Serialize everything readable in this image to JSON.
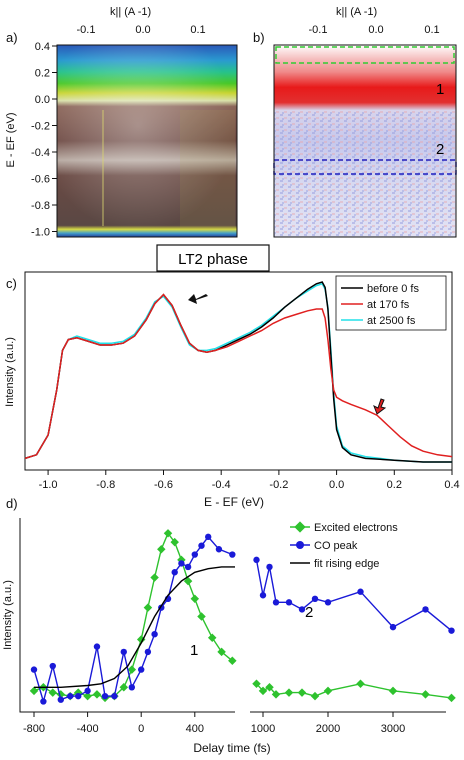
{
  "panels": {
    "a": "a)",
    "b": "b)",
    "c": "c)",
    "d": "d)"
  },
  "top_axis_label": "k|| (A -1)",
  "top_ticks": [
    "-0.1",
    "0.0",
    "0.1"
  ],
  "energy_axis": {
    "ylabel": "E - EF (eV)",
    "ticks": [
      "0.4",
      "0.2",
      "0.0",
      "-0.2",
      "-0.4",
      "-0.6",
      "-0.8",
      "-1.0"
    ]
  },
  "region_labels": [
    "1",
    "2"
  ],
  "phase_label": "LT2 phase",
  "colors": {
    "black": "#000000",
    "red": "#e02020",
    "cyan": "#22e0e8",
    "green": "#2ec22e",
    "blue": "#1a1ad8",
    "green_box": "#33cc33",
    "blue_box": "#2020c0"
  },
  "chart_data": [
    {
      "type": "line",
      "panel": "c",
      "ylabel": "Intensity (a.u.)",
      "xlabel": "E - EF (eV)",
      "xlim": [
        -1.08,
        0.4
      ],
      "xticks": [
        "-1.0",
        "-0.8",
        "-0.6",
        "-0.4",
        "-0.2",
        "0.0",
        "0.2",
        "0.4"
      ],
      "legend_position": "top-right",
      "series": [
        {
          "name": "before 0 fs",
          "x": [
            -1.08,
            -1.04,
            -1.0,
            -0.97,
            -0.95,
            -0.93,
            -0.9,
            -0.86,
            -0.82,
            -0.78,
            -0.74,
            -0.7,
            -0.66,
            -0.63,
            -0.6,
            -0.57,
            -0.54,
            -0.51,
            -0.48,
            -0.45,
            -0.42,
            -0.38,
            -0.34,
            -0.3,
            -0.26,
            -0.22,
            -0.18,
            -0.14,
            -0.1,
            -0.07,
            -0.05,
            -0.04,
            -0.03,
            -0.02,
            -0.01,
            0.0,
            0.02,
            0.05,
            0.1,
            0.2,
            0.3,
            0.4
          ],
          "y": [
            0.02,
            0.04,
            0.15,
            0.4,
            0.62,
            0.68,
            0.69,
            0.67,
            0.65,
            0.65,
            0.66,
            0.7,
            0.79,
            0.88,
            0.93,
            0.87,
            0.76,
            0.66,
            0.62,
            0.61,
            0.62,
            0.65,
            0.68,
            0.71,
            0.75,
            0.8,
            0.86,
            0.91,
            0.96,
            0.99,
            1.0,
            0.97,
            0.85,
            0.6,
            0.35,
            0.18,
            0.08,
            0.04,
            0.02,
            0.01,
            0.0,
            0.0
          ]
        },
        {
          "name": "at 170 fs",
          "x": [
            -1.08,
            -1.04,
            -1.0,
            -0.97,
            -0.95,
            -0.93,
            -0.9,
            -0.86,
            -0.82,
            -0.78,
            -0.74,
            -0.7,
            -0.66,
            -0.63,
            -0.6,
            -0.57,
            -0.54,
            -0.51,
            -0.48,
            -0.45,
            -0.42,
            -0.38,
            -0.34,
            -0.3,
            -0.26,
            -0.22,
            -0.18,
            -0.14,
            -0.1,
            -0.07,
            -0.05,
            -0.04,
            -0.03,
            -0.02,
            -0.01,
            0.0,
            0.02,
            0.05,
            0.1,
            0.14,
            0.18,
            0.22,
            0.26,
            0.3,
            0.35,
            0.4
          ],
          "y": [
            0.02,
            0.04,
            0.15,
            0.4,
            0.62,
            0.68,
            0.69,
            0.67,
            0.65,
            0.65,
            0.66,
            0.7,
            0.79,
            0.88,
            0.93,
            0.87,
            0.76,
            0.66,
            0.62,
            0.61,
            0.62,
            0.64,
            0.67,
            0.7,
            0.73,
            0.77,
            0.8,
            0.82,
            0.84,
            0.85,
            0.85,
            0.8,
            0.68,
            0.52,
            0.4,
            0.36,
            0.34,
            0.32,
            0.29,
            0.26,
            0.2,
            0.14,
            0.09,
            0.06,
            0.04,
            0.03
          ]
        },
        {
          "name": "at 2500 fs",
          "x": [
            -1.08,
            -1.04,
            -1.0,
            -0.97,
            -0.95,
            -0.93,
            -0.9,
            -0.86,
            -0.82,
            -0.78,
            -0.74,
            -0.7,
            -0.66,
            -0.63,
            -0.6,
            -0.57,
            -0.54,
            -0.51,
            -0.48,
            -0.45,
            -0.42,
            -0.38,
            -0.34,
            -0.3,
            -0.26,
            -0.22,
            -0.18,
            -0.14,
            -0.1,
            -0.07,
            -0.05,
            -0.04,
            -0.03,
            -0.02,
            -0.01,
            0.0,
            0.02,
            0.05,
            0.1,
            0.2,
            0.3,
            0.4
          ],
          "y": [
            0.02,
            0.04,
            0.15,
            0.4,
            0.62,
            0.68,
            0.7,
            0.68,
            0.66,
            0.66,
            0.67,
            0.71,
            0.8,
            0.89,
            0.92,
            0.86,
            0.75,
            0.65,
            0.62,
            0.62,
            0.63,
            0.66,
            0.69,
            0.72,
            0.76,
            0.81,
            0.86,
            0.91,
            0.95,
            0.98,
            0.99,
            0.96,
            0.86,
            0.63,
            0.38,
            0.2,
            0.09,
            0.05,
            0.03,
            0.01,
            0.0,
            0.0
          ]
        }
      ]
    },
    {
      "type": "line",
      "panel": "d",
      "ylabel": "Intensity (a.u.)",
      "xlabel": "Delay time (fs)",
      "xticks_left": [
        "-800",
        "-400",
        "0",
        "400"
      ],
      "xticks_right": [
        "1000",
        "2000",
        "3000"
      ],
      "legend_position": "top-right",
      "series": [
        {
          "name": "Excited electrons",
          "x": [
            -800,
            -730,
            -660,
            -600,
            -530,
            -470,
            -400,
            -330,
            -270,
            -200,
            -130,
            -70,
            0,
            50,
            100,
            150,
            200,
            250,
            300,
            350,
            400,
            450,
            530,
            600,
            680,
            800,
            900,
            1000,
            1100,
            1200,
            1400,
            1600,
            1800,
            2000,
            2500,
            3000,
            3500,
            3900
          ],
          "y": [
            0.08,
            0.1,
            0.07,
            0.06,
            0.05,
            0.07,
            0.05,
            0.06,
            0.04,
            0.05,
            0.1,
            0.2,
            0.37,
            0.55,
            0.72,
            0.88,
            0.97,
            0.92,
            0.82,
            0.7,
            0.6,
            0.5,
            0.38,
            0.3,
            0.25,
            null,
            0.12,
            0.08,
            0.1,
            0.06,
            0.07,
            0.07,
            0.05,
            0.08,
            0.12,
            0.08,
            0.06,
            0.04
          ]
        },
        {
          "name": "CO peak",
          "x": [
            -800,
            -730,
            -660,
            -600,
            -530,
            -470,
            -400,
            -330,
            -270,
            -200,
            -130,
            -70,
            0,
            50,
            100,
            150,
            200,
            250,
            300,
            350,
            400,
            450,
            500,
            580,
            680,
            800,
            900,
            1000,
            1100,
            1200,
            1400,
            1600,
            1800,
            2000,
            2500,
            3000,
            3500,
            3900
          ],
          "y": [
            0.2,
            0.02,
            0.22,
            0.03,
            0.05,
            0.05,
            0.08,
            0.33,
            0.05,
            0.05,
            0.3,
            0.1,
            0.2,
            0.3,
            0.4,
            0.55,
            0.6,
            0.75,
            0.8,
            0.78,
            0.85,
            0.9,
            0.95,
            0.88,
            0.85,
            null,
            0.82,
            0.62,
            0.78,
            0.58,
            0.58,
            0.54,
            0.6,
            0.58,
            0.64,
            0.44,
            0.54,
            0.42
          ]
        },
        {
          "name": "fit rising edge",
          "x": [
            -800,
            -600,
            -400,
            -300,
            -200,
            -100,
            0,
            100,
            200,
            300,
            400,
            500,
            600,
            700
          ],
          "y": [
            0.1,
            0.1,
            0.11,
            0.12,
            0.15,
            0.22,
            0.35,
            0.5,
            0.62,
            0.7,
            0.75,
            0.77,
            0.78,
            0.78
          ]
        }
      ]
    }
  ]
}
